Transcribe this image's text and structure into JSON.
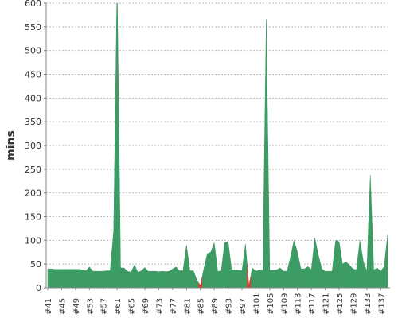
{
  "chart_data": {
    "type": "area",
    "ylabel": "mins",
    "categories": [
      "#41",
      null,
      null,
      null,
      "#45",
      null,
      null,
      null,
      "#49",
      null,
      null,
      null,
      "#53",
      null,
      null,
      null,
      "#57",
      null,
      null,
      null,
      "#61",
      null,
      null,
      null,
      "#65",
      null,
      null,
      null,
      "#69",
      null,
      null,
      null,
      "#73",
      null,
      null,
      null,
      "#77",
      null,
      null,
      null,
      "#81",
      null,
      null,
      null,
      "#85",
      null,
      null,
      null,
      "#89",
      null,
      null,
      null,
      "#93",
      null,
      null,
      null,
      "#97",
      null,
      null,
      null,
      "#101",
      null,
      null,
      null,
      "#105",
      null,
      null,
      null,
      "#109",
      null,
      null,
      null,
      "#113",
      null,
      null,
      null,
      "#117",
      null,
      null,
      null,
      "#121",
      null,
      null,
      null,
      "#125",
      null,
      null,
      null,
      "#129",
      null,
      null,
      null,
      "#133",
      null,
      null,
      null,
      "#137",
      null,
      null
    ],
    "series": [
      {
        "color": "#3d9b64",
        "values": [
          40,
          40,
          39,
          39,
          39,
          39,
          39,
          39,
          39,
          39,
          38,
          36,
          44,
          35,
          35,
          35,
          35,
          36,
          36,
          120,
          650,
          42,
          42,
          35,
          33,
          48,
          33,
          36,
          43,
          35,
          35,
          35,
          34,
          35,
          34,
          35,
          40,
          44,
          36,
          36,
          90,
          36,
          36,
          16,
          null,
          40,
          72,
          75,
          95,
          35,
          35,
          95,
          98,
          38,
          38,
          37,
          36,
          92,
          null,
          42,
          35,
          38,
          37,
          565,
          37,
          37,
          38,
          42,
          35,
          35,
          65,
          100,
          75,
          40,
          40,
          45,
          38,
          105,
          70,
          40,
          35,
          35,
          35,
          100,
          97,
          50,
          55,
          48,
          40,
          38,
          100,
          55,
          35,
          238,
          38,
          42,
          35,
          45,
          113
        ]
      },
      {
        "color": "#e03c31",
        "values": [
          null,
          null,
          null,
          null,
          null,
          null,
          null,
          null,
          null,
          null,
          null,
          null,
          null,
          null,
          null,
          null,
          null,
          null,
          null,
          null,
          null,
          null,
          null,
          null,
          null,
          null,
          null,
          null,
          null,
          null,
          null,
          null,
          null,
          null,
          null,
          null,
          null,
          null,
          null,
          null,
          null,
          null,
          null,
          null,
          5,
          null,
          null,
          null,
          null,
          null,
          null,
          null,
          null,
          null,
          null,
          null,
          null,
          null,
          5,
          null,
          null,
          null,
          null,
          null,
          null,
          null,
          null,
          null,
          null,
          null,
          null,
          null,
          null,
          null,
          null,
          null,
          null,
          null,
          null,
          null,
          null,
          null,
          null,
          null,
          null,
          null,
          null,
          null,
          null,
          null,
          null,
          null,
          null,
          null,
          null,
          null,
          null,
          null,
          null
        ]
      }
    ],
    "ylim": [
      0,
      600
    ],
    "yticks": [
      0,
      50,
      100,
      150,
      200,
      250,
      300,
      350,
      400,
      450,
      500,
      550,
      600
    ],
    "grid": true
  }
}
